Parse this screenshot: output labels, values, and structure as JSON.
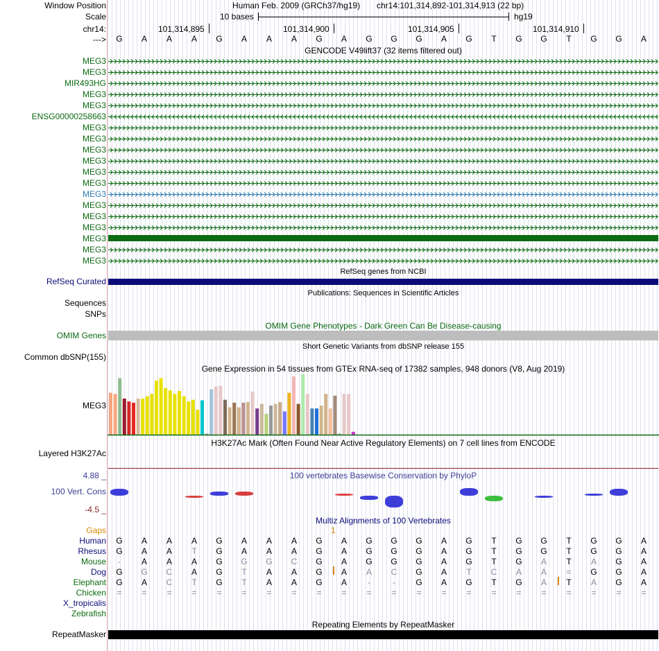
{
  "colors": {
    "gencode": "#0b6a12",
    "gencode_alt": "#2a7db0",
    "refseq": "#0c0c78",
    "omim": "#bdbdbd",
    "conservation_label": "#3c3c96",
    "multiz": "#0c0c78",
    "gaps": "#d58a00",
    "species": "#0c0c78",
    "species_green": "#0b6a12",
    "gtex_axis": "#0b6a12",
    "h3k27ac": "#8b2323"
  },
  "header": {
    "window_position_label": "Window Position",
    "scale_label": "Scale",
    "chr_label": "chr14:",
    "arrow_label": "--->",
    "assembly": "Human Feb. 2009 (GRCh37/hg19)",
    "position": "chr14:101,314,892-101,314,913 (22 bp)",
    "scale_text": "10 bases",
    "db": "hg19",
    "coords": [
      "101,314,895",
      "101,314,900",
      "101,314,905",
      "101,314,910"
    ],
    "bases": [
      "G",
      "A",
      "A",
      "A",
      "G",
      "A",
      "A",
      "A",
      "G",
      "A",
      "G",
      "G",
      "G",
      "A",
      "G",
      "T",
      "G",
      "G",
      "T",
      "G",
      "G",
      "A"
    ]
  },
  "gencode": {
    "title": "GENCODE V49lift37 (32 items filtered out)",
    "genes": [
      {
        "name": "MEG3",
        "dir": "right",
        "style": "chevron",
        "color": "green"
      },
      {
        "name": "MEG3",
        "dir": "right",
        "style": "chevron",
        "color": "green"
      },
      {
        "name": "MIR493HG",
        "dir": "right",
        "style": "chevron",
        "color": "green"
      },
      {
        "name": "MEG3",
        "dir": "right",
        "style": "chevron",
        "color": "green"
      },
      {
        "name": "MEG3",
        "dir": "right",
        "style": "chevron",
        "color": "green"
      },
      {
        "name": "ENSG00000258663",
        "dir": "left",
        "style": "chevron",
        "color": "green"
      },
      {
        "name": "MEG3",
        "dir": "right",
        "style": "chevron",
        "color": "green"
      },
      {
        "name": "MEG3",
        "dir": "right",
        "style": "chevron",
        "color": "green"
      },
      {
        "name": "MEG3",
        "dir": "right",
        "style": "chevron",
        "color": "green"
      },
      {
        "name": "MEG3",
        "dir": "right",
        "style": "chevron",
        "color": "green"
      },
      {
        "name": "MEG3",
        "dir": "right",
        "style": "chevron",
        "color": "green"
      },
      {
        "name": "MEG3",
        "dir": "right",
        "style": "chevron",
        "color": "green"
      },
      {
        "name": "MEG3",
        "dir": "right",
        "style": "chevron",
        "color": "blue"
      },
      {
        "name": "MEG3",
        "dir": "right",
        "style": "chevron",
        "color": "green"
      },
      {
        "name": "MEG3",
        "dir": "right",
        "style": "chevron",
        "color": "green"
      },
      {
        "name": "MEG3",
        "dir": "right",
        "style": "chevron",
        "color": "green"
      },
      {
        "name": "MEG3",
        "dir": "right",
        "style": "solid",
        "color": "green"
      },
      {
        "name": "MEG3",
        "dir": "right",
        "style": "chevron",
        "color": "green"
      },
      {
        "name": "MEG3",
        "dir": "right",
        "style": "chevron",
        "color": "green"
      }
    ]
  },
  "refseq": {
    "title": "RefSeq genes from NCBI",
    "label": "RefSeq Curated"
  },
  "publications": {
    "title": "Publications: Sequences in Scientific Articles",
    "label1": "Sequences",
    "label2": "SNPs"
  },
  "omim": {
    "title": "OMIM Gene Phenotypes - Dark Green Can Be Disease-causing",
    "label": "OMIM Genes"
  },
  "dbsnp": {
    "title": "Short Genetic Variants from dbSNP release 155",
    "label": "Common dbSNP(155)"
  },
  "gtex": {
    "title": "Gene Expression in 54 tissues from GTEx RNA-seq of 17382 samples, 948 donors (V8, Aug 2019)",
    "label": "MEG3",
    "bars": [
      {
        "v": 0.72,
        "c": "#f4a780"
      },
      {
        "v": 0.7,
        "c": "#f4a780"
      },
      {
        "v": 0.97,
        "c": "#8fbc8f"
      },
      {
        "v": 0.62,
        "c": "#9b1a2e"
      },
      {
        "v": 0.57,
        "c": "#d62728"
      },
      {
        "v": 0.55,
        "c": "#e6261f"
      },
      {
        "v": 0.62,
        "c": "#d7b89a"
      },
      {
        "v": 0.62,
        "c": "#e8e100"
      },
      {
        "v": 0.66,
        "c": "#e8e100"
      },
      {
        "v": 0.7,
        "c": "#e8e100"
      },
      {
        "v": 0.93,
        "c": "#e8e100"
      },
      {
        "v": 0.97,
        "c": "#e8e100"
      },
      {
        "v": 0.8,
        "c": "#e8e100"
      },
      {
        "v": 0.76,
        "c": "#e8e100"
      },
      {
        "v": 0.7,
        "c": "#e8e100"
      },
      {
        "v": 0.75,
        "c": "#e8e100"
      },
      {
        "v": 0.66,
        "c": "#e8e100"
      },
      {
        "v": 0.57,
        "c": "#e8e100"
      },
      {
        "v": 0.6,
        "c": "#e8e100"
      },
      {
        "v": 0.43,
        "c": "#e8e100"
      },
      {
        "v": 0.59,
        "c": "#00c5cd"
      },
      {
        "v": 0.02,
        "c": "#aaaaaa"
      },
      {
        "v": 0.78,
        "c": "#a3c3d9"
      },
      {
        "v": 0.83,
        "c": "#e6c8c8"
      },
      {
        "v": 0.84,
        "c": "#e6c8c8"
      },
      {
        "v": 0.6,
        "c": "#7f6a5a"
      },
      {
        "v": 0.47,
        "c": "#d2b48c"
      },
      {
        "v": 0.55,
        "c": "#9b7653"
      },
      {
        "v": 0.47,
        "c": "#d2b48c"
      },
      {
        "v": 0.55,
        "c": "#bc8f8f"
      },
      {
        "v": 0.56,
        "c": "#d2b48c"
      },
      {
        "v": 0.74,
        "c": "#e6c8c8"
      },
      {
        "v": 0.45,
        "c": "#7a3b8f"
      },
      {
        "v": 0.53,
        "c": "#cdb79e"
      },
      {
        "v": 0.36,
        "c": "#b5d07a"
      },
      {
        "v": 0.5,
        "c": "#999999"
      },
      {
        "v": 0.53,
        "c": "#cdb79e"
      },
      {
        "v": 0.56,
        "c": "#c8ab8c"
      },
      {
        "v": 0.4,
        "c": "#7777ff"
      },
      {
        "v": 0.72,
        "c": "#eeb422"
      },
      {
        "v": 1.0,
        "c": "#f3b5b5"
      },
      {
        "v": 0.53,
        "c": "#8b5a2b"
      },
      {
        "v": 1.04,
        "c": "#aeeaae"
      },
      {
        "v": 0.7,
        "c": "#e6c8c8"
      },
      {
        "v": 0.45,
        "c": "#4682b4"
      },
      {
        "v": 0.45,
        "c": "#1e6fd9"
      },
      {
        "v": 0.5,
        "c": "#d2b48c"
      },
      {
        "v": 0.7,
        "c": "#d2b48c"
      },
      {
        "v": 0.45,
        "c": "#f4c09a"
      },
      {
        "v": 0.67,
        "c": "#a38b7a"
      },
      {
        "v": 0.02,
        "c": "#aaaaaa"
      },
      {
        "v": 0.7,
        "c": "#e6c8c8"
      },
      {
        "v": 0.7,
        "c": "#e6c8c8"
      },
      {
        "v": 0.05,
        "c": "#cc33cc"
      }
    ]
  },
  "h3k27ac": {
    "title": "H3K27Ac Mark (Often Found Near Active Regulatory Elements) on 7 cell lines from ENCODE",
    "label": "Layered H3K27Ac"
  },
  "conservation": {
    "title": "100 vertebrates Basewise Conservation by PhyloP",
    "label": "100 Vert. Cons",
    "max_label": "4.88 _",
    "min_label": "-4.5 _",
    "scores": [
      1.5,
      0,
      0,
      -0.3,
      0.8,
      0.9,
      0,
      0,
      0,
      0.1,
      -0.8,
      -2.4,
      0,
      0,
      1.6,
      -1.2,
      0,
      -0.2,
      0,
      0.3,
      1.5,
      0
    ]
  },
  "multiz": {
    "title": "Multiz Alignments of 100 Vertebrates",
    "gaps_label": "Gaps",
    "gap_marker": "1",
    "species": [
      {
        "name": "Human",
        "seq": [
          "G",
          "A",
          "A",
          "A",
          "G",
          "A",
          "A",
          "A",
          "G",
          "A",
          "G",
          "G",
          "G",
          "A",
          "G",
          "T",
          "G",
          "G",
          "T",
          "G",
          "G",
          "A"
        ]
      },
      {
        "name": "Rhesus",
        "seq": [
          "G",
          "A",
          "A",
          "T",
          "G",
          "A",
          "A",
          "A",
          "G",
          "A",
          "G",
          "G",
          "G",
          "A",
          "G",
          "T",
          "G",
          "G",
          "T",
          "G",
          "G",
          "A"
        ]
      },
      {
        "name": "Mouse",
        "seq": [
          "-",
          "A",
          "A",
          "A",
          "G",
          "G",
          "G",
          "C",
          "G",
          "A",
          "G",
          "G",
          "G",
          "A",
          "G",
          "T",
          "G",
          "A",
          "T",
          "A",
          "G",
          "A"
        ]
      },
      {
        "name": "Dog",
        "seq": [
          "G",
          "G",
          "C",
          "A",
          "G",
          "T",
          "A",
          "A",
          "G",
          "A",
          "A",
          "C",
          "G",
          "A",
          "T",
          "C",
          "A",
          "A",
          "=",
          "G",
          "G",
          "A"
        ]
      },
      {
        "name": "Elephant",
        "seq": [
          "G",
          "A",
          "C",
          "T",
          "G",
          "T",
          "A",
          "A",
          "G",
          "A",
          "-",
          "-",
          "G",
          "A",
          "G",
          "T",
          "G",
          "A",
          "T",
          "A",
          "G",
          "A"
        ]
      },
      {
        "name": "Chicken",
        "seq": [
          "=",
          "=",
          "=",
          "=",
          "=",
          "=",
          "=",
          "=",
          "=",
          "=",
          "=",
          "=",
          "=",
          "=",
          "=",
          "=",
          "=",
          "=",
          "=",
          "=",
          "=",
          "="
        ]
      },
      {
        "name": "X_tropicalis",
        "seq": []
      },
      {
        "name": "Zebrafish",
        "seq": []
      }
    ]
  },
  "repeatmasker": {
    "title": "Repeating Elements by RepeatMasker",
    "label": "RepeatMasker"
  }
}
